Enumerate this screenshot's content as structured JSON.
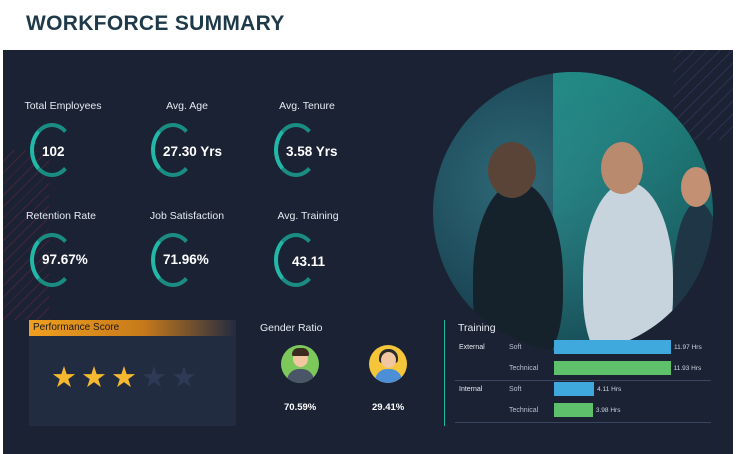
{
  "title": "WORKFORCE SUMMARY",
  "kpis": {
    "total_employees": {
      "label": "Total Employees",
      "value": "102"
    },
    "avg_age": {
      "label": "Avg. Age",
      "value": "27.30 Yrs"
    },
    "avg_tenure": {
      "label": "Avg. Tenure",
      "value": "3.58 Yrs"
    },
    "retention_rate": {
      "label": "Retention Rate",
      "value": "97.67%"
    },
    "job_satisfaction": {
      "label": "Job Satisfaction",
      "value": "71.96%"
    },
    "avg_training": {
      "label": "Avg. Training",
      "value": "43.11"
    }
  },
  "performance": {
    "label": "Performance Score",
    "stars_filled": 3,
    "stars_total": 5,
    "star_glyph": "★"
  },
  "gender": {
    "label": "Gender Ratio",
    "male": "70.59%",
    "female": "29.41%"
  },
  "training": {
    "label": "Training",
    "groups": [
      {
        "name": "External",
        "items": [
          {
            "type": "Soft",
            "hours": 11.97,
            "label": "11.97 Hrs",
            "color": "#3fa8dc"
          },
          {
            "type": "Technical",
            "hours": 11.93,
            "label": "11.93 Hrs",
            "color": "#5ec06a"
          }
        ]
      },
      {
        "name": "Internal",
        "items": [
          {
            "type": "Soft",
            "hours": 4.11,
            "label": "4.11 Hrs",
            "color": "#3fa8dc"
          },
          {
            "type": "Technical",
            "hours": 3.98,
            "label": "3.98 Hrs",
            "color": "#5ec06a"
          }
        ]
      }
    ]
  },
  "colors": {
    "accent": "#22b8a8",
    "background": "#1a2233",
    "star_on": "#f5b82e",
    "star_off": "#2e3a55"
  }
}
